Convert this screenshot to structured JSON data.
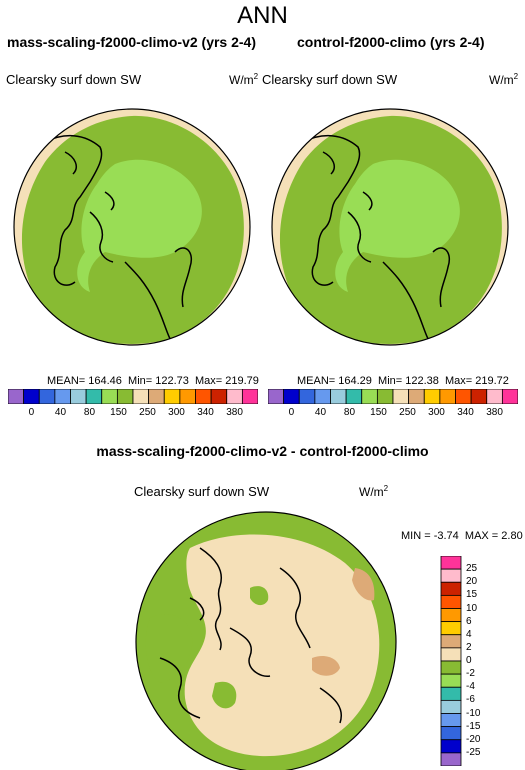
{
  "title": "ANN",
  "panels": [
    {
      "title": "mass-scaling-f2000-climo-v2 (yrs 2-4)",
      "variable": "Clearsky surf down SW",
      "units": "W/m",
      "units_sup": "2",
      "stats": {
        "mean": "MEAN= 164.46",
        "min": "Min= 122.73",
        "max": "Max= 219.79"
      }
    },
    {
      "title": "control-f2000-climo (yrs 2-4)",
      "variable": "Clearsky surf down SW",
      "units": "W/m",
      "units_sup": "2",
      "stats": {
        "mean": "MEAN= 164.29",
        "min": "Min= 122.38",
        "max": "Max= 219.72"
      }
    }
  ],
  "field_colorbar": {
    "colors": [
      "#9966cc",
      "#0000cc",
      "#3366dd",
      "#6699ee",
      "#99ccdd",
      "#33bbaa",
      "#99dd55",
      "#88bb33",
      "#f5e0b8",
      "#ddaa77",
      "#ffcc00",
      "#ff9900",
      "#ff5500",
      "#cc2200",
      "#ffbbcc",
      "#ff3399"
    ],
    "labels": [
      "0",
      "40",
      "80",
      "150",
      "250",
      "300",
      "340",
      "380"
    ]
  },
  "diff_panel": {
    "title": "mass-scaling-f2000-climo-v2 - control-f2000-climo",
    "variable": "Clearsky surf down SW",
    "units": "W/m",
    "units_sup": "2",
    "min": "MIN =  -3.74",
    "max": "MAX =   2.80"
  },
  "diff_colorbar": {
    "colors": [
      "#9966cc",
      "#0000cc",
      "#3366dd",
      "#6699ee",
      "#99ccdd",
      "#33bbaa",
      "#99dd55",
      "#88bb33",
      "#f5e0b8",
      "#ddaa77",
      "#ffcc00",
      "#ff9900",
      "#ff5500",
      "#cc2200",
      "#ffbbcc",
      "#ff3399"
    ],
    "labels": [
      "25",
      "20",
      "15",
      "10",
      "6",
      "4",
      "2",
      "0",
      "-2",
      "-4",
      "-6",
      "-10",
      "-15",
      "-20",
      "-25"
    ]
  },
  "map_colors": {
    "outer_band": "#f5e0b8",
    "mid_band": "#88bb33",
    "inner_band": "#99dd55",
    "diff_positive": "#f5e0b8",
    "diff_negative": "#88bb33",
    "diff_high": "#ddaa77",
    "coast": "#000000"
  }
}
